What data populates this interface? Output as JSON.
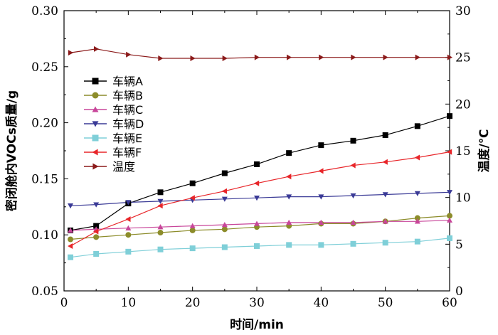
{
  "chart_data": {
    "type": "line",
    "xlabel": "时间/min",
    "ylabel_left": "密闭舱内VOCs质量/g",
    "ylabel_right": "温度/℃",
    "xlim": [
      0,
      60
    ],
    "ylim_left": [
      0.05,
      0.3
    ],
    "ylim_right": [
      0,
      30
    ],
    "xticks": [
      "0",
      "10",
      "20",
      "30",
      "40",
      "50",
      "60"
    ],
    "yticks_left": [
      "0.05",
      "0.10",
      "0.15",
      "0.20",
      "0.25",
      "0.30"
    ],
    "yticks_right": [
      "0",
      "5",
      "10",
      "15",
      "20",
      "25",
      "30"
    ],
    "legend_position": "upper-left",
    "x": [
      1,
      5,
      10,
      15,
      20,
      25,
      30,
      35,
      40,
      45,
      50,
      55,
      60
    ],
    "series": [
      {
        "name": "车辆A",
        "axis": "left",
        "marker": "square",
        "color": "#000000",
        "values": [
          0.104,
          0.108,
          0.128,
          0.138,
          0.146,
          0.155,
          0.163,
          0.173,
          0.18,
          0.184,
          0.189,
          0.197,
          0.206
        ]
      },
      {
        "name": "车辆B",
        "axis": "left",
        "marker": "circle",
        "color": "#8c8c2a",
        "values": [
          0.096,
          0.098,
          0.1,
          0.102,
          0.104,
          0.105,
          0.107,
          0.108,
          0.11,
          0.11,
          0.112,
          0.115,
          0.117
        ]
      },
      {
        "name": "车辆C",
        "axis": "left",
        "marker": "triangle-up",
        "color": "#c8469a",
        "values": [
          0.104,
          0.105,
          0.106,
          0.107,
          0.108,
          0.109,
          0.11,
          0.111,
          0.111,
          0.111,
          0.112,
          0.112,
          0.113
        ]
      },
      {
        "name": "车辆D",
        "axis": "left",
        "marker": "triangle-down",
        "color": "#3a3a96",
        "values": [
          0.126,
          0.127,
          0.129,
          0.13,
          0.131,
          0.132,
          0.133,
          0.134,
          0.134,
          0.135,
          0.136,
          0.137,
          0.138
        ]
      },
      {
        "name": "车辆E",
        "axis": "left",
        "marker": "square",
        "color": "#7fcfd8",
        "values": [
          0.08,
          0.083,
          0.085,
          0.087,
          0.088,
          0.089,
          0.09,
          0.091,
          0.091,
          0.092,
          0.093,
          0.094,
          0.097
        ]
      },
      {
        "name": "车辆F",
        "axis": "left",
        "marker": "triangle-left",
        "color": "#e8262a",
        "values": [
          0.09,
          0.103,
          0.114,
          0.126,
          0.133,
          0.139,
          0.146,
          0.152,
          0.157,
          0.162,
          0.165,
          0.169,
          0.174
        ]
      },
      {
        "name": "温度",
        "axis": "right",
        "marker": "triangle-right",
        "color": "#8b1a1a",
        "values": [
          25.5,
          25.9,
          25.3,
          24.9,
          24.9,
          24.9,
          25.0,
          25.0,
          25.0,
          25.0,
          25.0,
          25.0,
          25.0
        ]
      }
    ]
  }
}
